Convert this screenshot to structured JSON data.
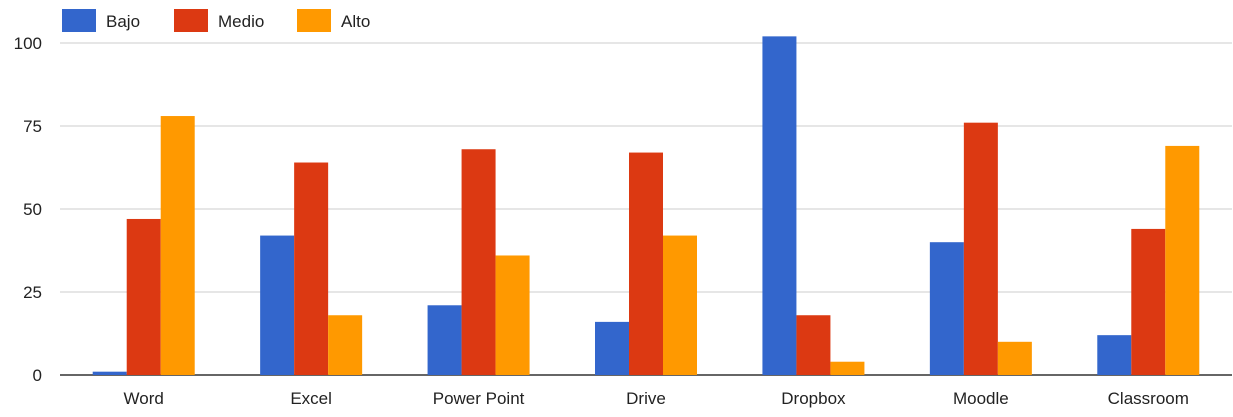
{
  "chart_data": {
    "type": "bar",
    "title": "",
    "xlabel": "",
    "ylabel": "",
    "categories": [
      "Word",
      "Excel",
      "Power Point",
      "Drive",
      "Dropbox",
      "Moodle",
      "Classroom"
    ],
    "series": [
      {
        "name": "Bajo",
        "color": "#3366cc",
        "values": [
          1,
          42,
          21,
          16,
          102,
          40,
          12
        ]
      },
      {
        "name": "Medio",
        "color": "#dc3912",
        "values": [
          47,
          64,
          68,
          67,
          18,
          76,
          44
        ]
      },
      {
        "name": "Alto",
        "color": "#ff9900",
        "values": [
          78,
          18,
          36,
          42,
          4,
          10,
          69
        ]
      }
    ],
    "ylim": [
      0,
      100
    ],
    "yticks": [
      0,
      25,
      50,
      75,
      100
    ],
    "grid": true,
    "legend_position": "top-left"
  }
}
